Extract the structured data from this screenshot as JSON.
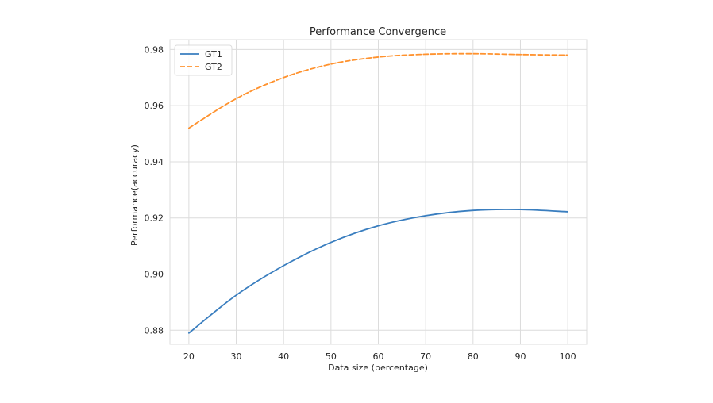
{
  "chart_data": {
    "type": "line",
    "title": "Performance Convergence",
    "xlabel": "Data size (percentage)",
    "ylabel": "Performance(accuracy)",
    "xlim": [
      16,
      104
    ],
    "ylim": [
      0.875,
      0.9835
    ],
    "xticks": [
      20,
      30,
      40,
      50,
      60,
      70,
      80,
      90,
      100
    ],
    "yticks": [
      0.88,
      0.9,
      0.92,
      0.94,
      0.96,
      0.98
    ],
    "ytick_labels": [
      "0.88",
      "0.90",
      "0.92",
      "0.94",
      "0.96",
      "0.98"
    ],
    "grid": true,
    "legend_position": "upper-left",
    "series": [
      {
        "name": "GT1",
        "color": "#3a7ebf",
        "dash": "solid",
        "x": [
          20,
          30,
          40,
          50,
          60,
          70,
          80,
          90,
          100
        ],
        "y": [
          0.879,
          0.8925,
          0.903,
          0.9113,
          0.9172,
          0.9208,
          0.9227,
          0.923,
          0.9222
        ]
      },
      {
        "name": "GT2",
        "color": "#ff922e",
        "dash": "dashed",
        "x": [
          20,
          30,
          40,
          50,
          60,
          70,
          80,
          90,
          100
        ],
        "y": [
          0.952,
          0.9625,
          0.97,
          0.9748,
          0.9773,
          0.9783,
          0.9785,
          0.9782,
          0.978
        ]
      }
    ]
  }
}
